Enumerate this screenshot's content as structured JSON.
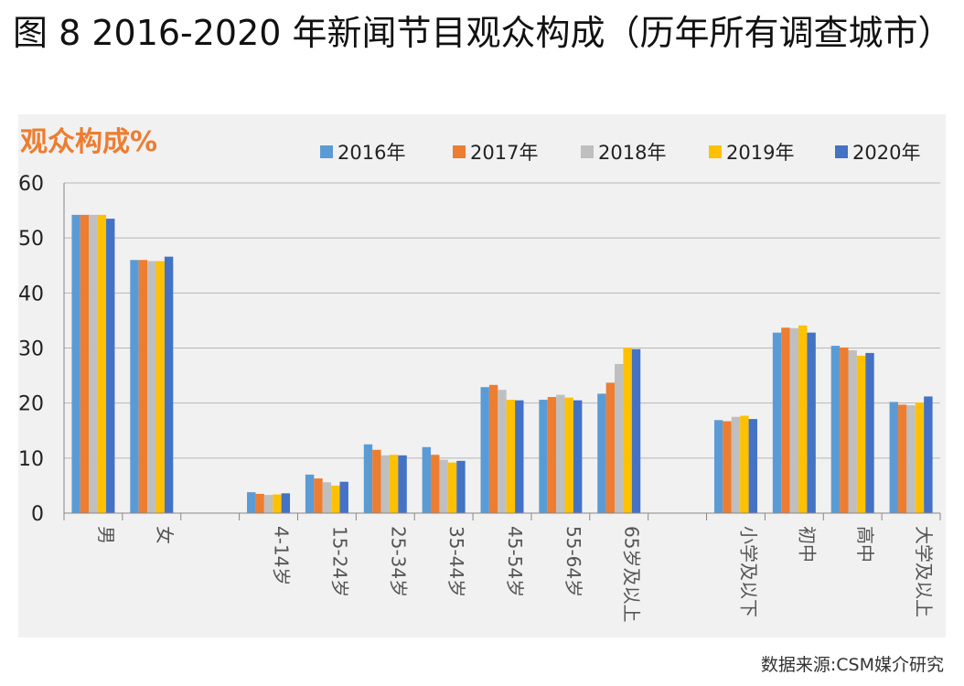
{
  "figure_title": "图 8 2016-2020 年新闻节目观众构成（历年所有调查城市）",
  "source_note": "数据来源:CSM媒介研究",
  "colors": {
    "s2016": "#5b9bd5",
    "s2017": "#ed7d31",
    "s2018": "#bfbfbf",
    "s2019": "#ffc000",
    "s2020": "#4472c4",
    "ylabel": "#ed7d31",
    "panel": "#f1f1f1",
    "grid": "#b7b7b7"
  },
  "chart_data": {
    "type": "bar",
    "title": "图 8 2016-2020 年新闻节目观众构成（历年所有调查城市）",
    "ylabel": "观众构成%",
    "xlabel": "",
    "ylim": [
      0,
      60
    ],
    "yticks": [
      0,
      10,
      20,
      30,
      40,
      50,
      60
    ],
    "grid": true,
    "legend_position": "top",
    "categories": [
      "男",
      "女",
      "",
      "4-14岁",
      "15-24岁",
      "25-34岁",
      "35-44岁",
      "45-54岁",
      "55-64岁",
      "65岁及以上",
      "",
      "小学及以下",
      "初中",
      "高中",
      "大学及以上"
    ],
    "series": [
      {
        "name": "2016年",
        "values": [
          54.2,
          46.0,
          null,
          3.8,
          7.0,
          12.5,
          12.0,
          22.9,
          20.6,
          21.7,
          null,
          16.9,
          32.8,
          30.4,
          20.2
        ]
      },
      {
        "name": "2017年",
        "values": [
          54.2,
          46.0,
          null,
          3.5,
          6.3,
          11.5,
          10.6,
          23.3,
          21.1,
          23.7,
          null,
          16.7,
          33.7,
          30.1,
          19.7
        ]
      },
      {
        "name": "2018年",
        "values": [
          54.2,
          45.8,
          null,
          3.3,
          5.6,
          10.5,
          9.7,
          22.4,
          21.5,
          27.1,
          null,
          17.5,
          33.6,
          29.6,
          19.6
        ]
      },
      {
        "name": "2019年",
        "values": [
          54.2,
          45.8,
          null,
          3.4,
          5.0,
          10.6,
          9.2,
          20.6,
          21.0,
          30.1,
          null,
          17.7,
          34.1,
          28.6,
          20.1
        ]
      },
      {
        "name": "2020年",
        "values": [
          53.5,
          46.6,
          null,
          3.6,
          5.7,
          10.5,
          9.5,
          20.5,
          20.5,
          29.8,
          null,
          17.1,
          32.8,
          29.1,
          21.2
        ]
      }
    ]
  }
}
